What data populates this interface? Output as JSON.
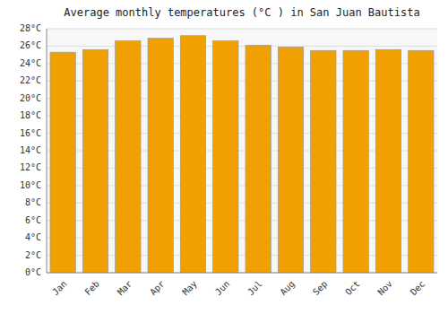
{
  "chart_data": {
    "type": "bar",
    "title": "Average monthly temperatures (°C ) in San Juan Bautista",
    "categories": [
      "Jan",
      "Feb",
      "Mar",
      "Apr",
      "May",
      "Jun",
      "Jul",
      "Aug",
      "Sep",
      "Oct",
      "Nov",
      "Dec"
    ],
    "values": [
      25.3,
      25.6,
      26.6,
      26.9,
      27.2,
      26.6,
      26.1,
      25.9,
      25.5,
      25.5,
      25.6,
      25.5
    ],
    "color": "#F0A000",
    "ylim": [
      0,
      28
    ],
    "yticks": [
      {
        "value": 0,
        "label": "0°C"
      },
      {
        "value": 2,
        "label": "2°C"
      },
      {
        "value": 4,
        "label": "4°C"
      },
      {
        "value": 6,
        "label": "6°C"
      },
      {
        "value": 8,
        "label": "8°C"
      },
      {
        "value": 10,
        "label": "10°C"
      },
      {
        "value": 12,
        "label": "12°C"
      },
      {
        "value": 14,
        "label": "14°C"
      },
      {
        "value": 16,
        "label": "16°C"
      },
      {
        "value": 18,
        "label": "18°C"
      },
      {
        "value": 20,
        "label": "20°C"
      },
      {
        "value": 22,
        "label": "22°C"
      },
      {
        "value": 24,
        "label": "24°C"
      },
      {
        "value": 26,
        "label": "26°C"
      },
      {
        "value": 28,
        "label": "28°C"
      }
    ],
    "grid": true
  }
}
